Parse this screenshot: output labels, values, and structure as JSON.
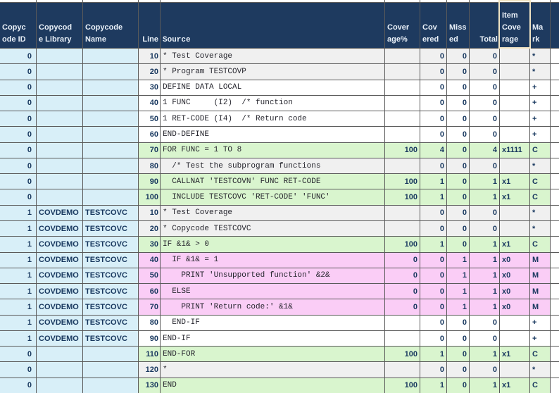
{
  "app": {
    "description": "Test coverage spreadsheet view of Natural program TESTCOVP and copycode TESTCOVC"
  },
  "table": {
    "columns": [
      {
        "key": "id",
        "label": "Copyc\node ID"
      },
      {
        "key": "lib",
        "label": "Copycod\ne Library"
      },
      {
        "key": "name",
        "label": "Copycode\nName"
      },
      {
        "key": "line",
        "label": "Line"
      },
      {
        "key": "source",
        "label": "Source"
      },
      {
        "key": "cov",
        "label": "Cover\nage%"
      },
      {
        "key": "covered",
        "label": "Cov\nered"
      },
      {
        "key": "missed",
        "label": "Miss\ned"
      },
      {
        "key": "total",
        "label": "Total"
      },
      {
        "key": "item",
        "label": "Item\nCove\nrage"
      },
      {
        "key": "mark",
        "label": "Ma\nrk"
      }
    ],
    "selection": {
      "column": "Item Coverage",
      "column_index": 9
    },
    "rows": [
      {
        "id": "0",
        "lib": "",
        "name": "",
        "line": "10",
        "source": "* Test Coverage",
        "cov": "",
        "covered": "0",
        "missed": "0",
        "total": "0",
        "item": "",
        "mark": "*",
        "style": "comment"
      },
      {
        "id": "0",
        "lib": "",
        "name": "",
        "line": "20",
        "source": "* Program TESTCOVP",
        "cov": "",
        "covered": "0",
        "missed": "0",
        "total": "0",
        "item": "",
        "mark": "*",
        "style": "comment"
      },
      {
        "id": "0",
        "lib": "",
        "name": "",
        "line": "30",
        "source": "DEFINE DATA LOCAL",
        "cov": "",
        "covered": "0",
        "missed": "0",
        "total": "0",
        "item": "",
        "mark": "+",
        "style": "plain"
      },
      {
        "id": "0",
        "lib": "",
        "name": "",
        "line": "40",
        "source": "1 FUNC     (I2)  /* function",
        "cov": "",
        "covered": "0",
        "missed": "0",
        "total": "0",
        "item": "",
        "mark": "+",
        "style": "plain"
      },
      {
        "id": "0",
        "lib": "",
        "name": "",
        "line": "50",
        "source": "1 RET-CODE (I4)  /* Return code",
        "cov": "",
        "covered": "0",
        "missed": "0",
        "total": "0",
        "item": "",
        "mark": "+",
        "style": "plain"
      },
      {
        "id": "0",
        "lib": "",
        "name": "",
        "line": "60",
        "source": "END-DEFINE",
        "cov": "",
        "covered": "0",
        "missed": "0",
        "total": "0",
        "item": "",
        "mark": "+",
        "style": "plain"
      },
      {
        "id": "0",
        "lib": "",
        "name": "",
        "line": "70",
        "source": "FOR FUNC = 1 TO 8",
        "cov": "100",
        "covered": "4",
        "missed": "0",
        "total": "4",
        "item": "x1111",
        "mark": "C",
        "style": "covered"
      },
      {
        "id": "0",
        "lib": "",
        "name": "",
        "line": "80",
        "source": "  /* Test the subprogram functions",
        "cov": "",
        "covered": "0",
        "missed": "0",
        "total": "0",
        "item": "",
        "mark": "*",
        "style": "comment"
      },
      {
        "id": "0",
        "lib": "",
        "name": "",
        "line": "90",
        "source": "  CALLNAT 'TESTCOVN' FUNC RET-CODE",
        "cov": "100",
        "covered": "1",
        "missed": "0",
        "total": "1",
        "item": "x1",
        "mark": "C",
        "style": "covered"
      },
      {
        "id": "0",
        "lib": "",
        "name": "",
        "line": "100",
        "source": "  INCLUDE TESTCOVC 'RET-CODE' 'FUNC'",
        "cov": "100",
        "covered": "1",
        "missed": "0",
        "total": "1",
        "item": "x1",
        "mark": "C",
        "style": "covered"
      },
      {
        "id": "1",
        "lib": "COVDEMO",
        "name": "TESTCOVC",
        "line": "10",
        "source": "* Test Coverage",
        "cov": "",
        "covered": "0",
        "missed": "0",
        "total": "0",
        "item": "",
        "mark": "*",
        "style": "comment"
      },
      {
        "id": "1",
        "lib": "COVDEMO",
        "name": "TESTCOVC",
        "line": "20",
        "source": "* Copycode TESTCOVC",
        "cov": "",
        "covered": "0",
        "missed": "0",
        "total": "0",
        "item": "",
        "mark": "*",
        "style": "comment"
      },
      {
        "id": "1",
        "lib": "COVDEMO",
        "name": "TESTCOVC",
        "line": "30",
        "source": "IF &1& > 0",
        "cov": "100",
        "covered": "1",
        "missed": "0",
        "total": "1",
        "item": "x1",
        "mark": "C",
        "style": "covered"
      },
      {
        "id": "1",
        "lib": "COVDEMO",
        "name": "TESTCOVC",
        "line": "40",
        "source": "  IF &1& = 1",
        "cov": "0",
        "covered": "0",
        "missed": "1",
        "total": "1",
        "item": "x0",
        "mark": "M",
        "style": "missed"
      },
      {
        "id": "1",
        "lib": "COVDEMO",
        "name": "TESTCOVC",
        "line": "50",
        "source": "    PRINT 'Unsupported function' &2&",
        "cov": "0",
        "covered": "0",
        "missed": "1",
        "total": "1",
        "item": "x0",
        "mark": "M",
        "style": "missed"
      },
      {
        "id": "1",
        "lib": "COVDEMO",
        "name": "TESTCOVC",
        "line": "60",
        "source": "  ELSE",
        "cov": "0",
        "covered": "0",
        "missed": "1",
        "total": "1",
        "item": "x0",
        "mark": "M",
        "style": "missed"
      },
      {
        "id": "1",
        "lib": "COVDEMO",
        "name": "TESTCOVC",
        "line": "70",
        "source": "    PRINT 'Return code:' &1&",
        "cov": "0",
        "covered": "0",
        "missed": "1",
        "total": "1",
        "item": "x0",
        "mark": "M",
        "style": "missed"
      },
      {
        "id": "1",
        "lib": "COVDEMO",
        "name": "TESTCOVC",
        "line": "80",
        "source": "  END-IF",
        "cov": "",
        "covered": "0",
        "missed": "0",
        "total": "0",
        "item": "",
        "mark": "+",
        "style": "plain"
      },
      {
        "id": "1",
        "lib": "COVDEMO",
        "name": "TESTCOVC",
        "line": "90",
        "source": "END-IF",
        "cov": "",
        "covered": "0",
        "missed": "0",
        "total": "0",
        "item": "",
        "mark": "+",
        "style": "plain"
      },
      {
        "id": "0",
        "lib": "",
        "name": "",
        "line": "110",
        "source": "END-FOR",
        "cov": "100",
        "covered": "1",
        "missed": "0",
        "total": "1",
        "item": "x1",
        "mark": "C",
        "style": "covered"
      },
      {
        "id": "0",
        "lib": "",
        "name": "",
        "line": "120",
        "source": "*",
        "cov": "",
        "covered": "0",
        "missed": "0",
        "total": "0",
        "item": "",
        "mark": "*",
        "style": "comment"
      },
      {
        "id": "0",
        "lib": "",
        "name": "",
        "line": "130",
        "source": "END",
        "cov": "100",
        "covered": "1",
        "missed": "0",
        "total": "1",
        "item": "x1",
        "mark": "C",
        "style": "covered"
      }
    ]
  },
  "colors": {
    "header_bg": "#1E3A5F",
    "header_text": "#E9F0F8",
    "copycode_cols_bg": "#D8EFF8",
    "comment_row_bg": "#F0F0F0",
    "covered_row_bg": "#D9F5CE",
    "missed_row_bg": "#FACDF6",
    "grid_line": "#5A5A5A",
    "selection_border": "#F1E4C3",
    "data_text": "#17375E"
  }
}
